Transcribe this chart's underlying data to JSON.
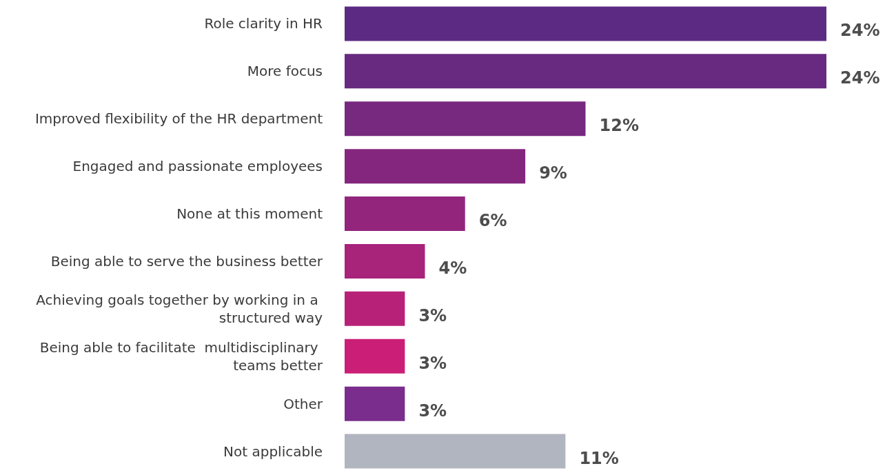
{
  "chart_data": {
    "type": "bar",
    "orientation": "horizontal",
    "categories": [
      "Role clarity in HR",
      "More focus",
      "Improved flexibility of the HR department",
      "Engaged and passionate employees",
      "None at this moment",
      "Being able to serve the business better",
      "Achieving goals together by working in a structured way",
      "Being able to facilitate  multidisciplinary teams better",
      "Other",
      "Not applicable"
    ],
    "values": [
      24,
      24,
      12,
      9,
      6,
      4,
      3,
      3,
      3,
      11
    ],
    "colors": [
      "#5c2a83",
      "#682981",
      "#77287f",
      "#84267e",
      "#94257c",
      "#a8237a",
      "#b72278",
      "#cb1f77",
      "#7a2d8c",
      "#b1b5bf"
    ],
    "value_labels": [
      "24%",
      "24%",
      "12%",
      "9%",
      "6%",
      "4%",
      "3%",
      "3%",
      "3%",
      "11%"
    ]
  }
}
